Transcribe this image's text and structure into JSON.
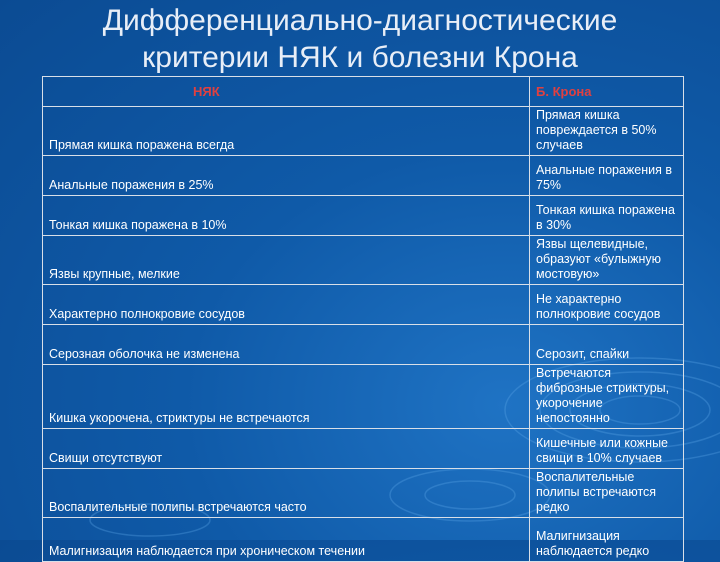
{
  "slide": {
    "title_line1": "Дифференциально-диагностические",
    "title_line2": "критерии НЯК и болезни Крона"
  },
  "table": {
    "headers": [
      "НЯК",
      "Б. Крона"
    ],
    "rows": [
      [
        "Прямая кишка поражена всегда",
        "Прямая кишка повреждается в 50% случаев"
      ],
      [
        "Анальные поражения в 25%",
        "Анальные поражения в 75%"
      ],
      [
        "Тонкая кишка поражена в 10%",
        "Тонкая кишка поражена в 30%"
      ],
      [
        "Язвы крупные, мелкие",
        "Язвы щелевидные, образуют «булыжную мостовую»"
      ],
      [
        "Характерно полнокровие сосудов",
        "Не характерно полнокровие сосудов"
      ],
      [
        "Серозная оболочка не изменена",
        "Серозит, спайки"
      ],
      [
        "Кишка укорочена, стриктуры не встречаются",
        "Встречаются фиброзные стриктуры, укорочение непостоянно"
      ],
      [
        "Свищи отсутствуют",
        "Кишечные или кожные свищи в 10% случаев"
      ],
      [
        "Воспалительные полипы встречаются часто",
        "Воспалительные полипы встречаются редко"
      ],
      [
        "Малигнизация наблюдается при хроническом течении",
        "Малигнизация наблюдается редко"
      ]
    ]
  },
  "colors": {
    "background": "#0f5aa8",
    "header_text": "#e04040",
    "text": "#ffffff"
  }
}
